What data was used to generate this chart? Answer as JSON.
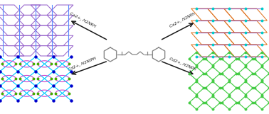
{
  "background_color": "#ffffff",
  "arrow_color": "#1a1a1a",
  "arrow_label_color": "#1a1a1a",
  "arrow_labels": [
    "Ca2+, H2NPH",
    "Cd2+, H2NIPH",
    "Ca2+, H2NPh",
    "Cd2+, H2NPh"
  ],
  "tl_color1": "#9966cc",
  "tl_color2": "#5588ff",
  "bl_color1": "#00ccff",
  "bl_color2": "#cc44cc",
  "bl_color3": "#44aa00",
  "bl_dot_color": "#0000cc",
  "tr_color1": "#e07828",
  "tr_color2": "#9966cc",
  "tr_dot_color": "#00cccc",
  "br_color1": "#44cc44",
  "br_color2": "#cc44cc",
  "br_dot_color": "#44cc44",
  "mol_color": "#888888"
}
